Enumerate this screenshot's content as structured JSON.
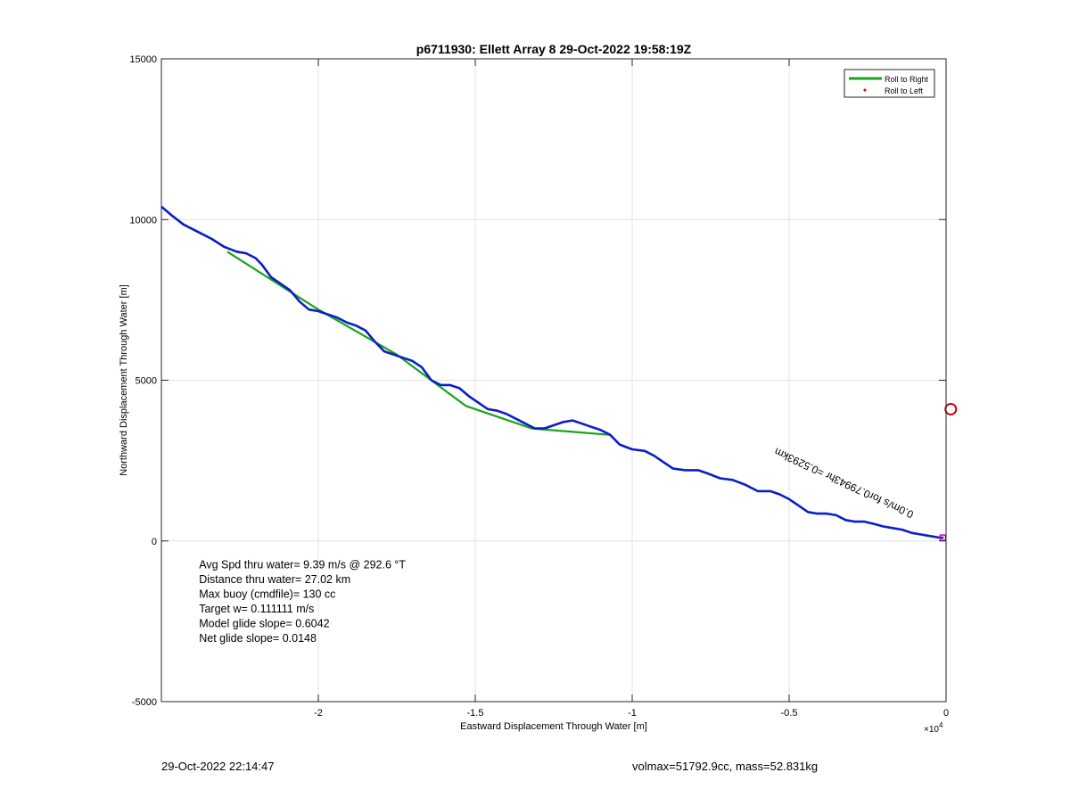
{
  "chart_data": {
    "type": "line",
    "title": "p6711930: Ellett Array 8 29-Oct-2022 19:58:19Z",
    "xlabel": "Eastward Displacement Through Water [m]",
    "ylabel": "Northward Displacement Through Water [m]",
    "x_multiplier_label": "×10",
    "x_multiplier_exp": "4",
    "xlim": [
      -25000,
      0
    ],
    "ylim": [
      -5000,
      15000
    ],
    "xticks": [
      -20000,
      -15000,
      -10000,
      -5000,
      0
    ],
    "xtick_labels": [
      "-2",
      "-1.5",
      "-1",
      "-0.5",
      "0"
    ],
    "yticks": [
      -5000,
      0,
      5000,
      10000,
      15000
    ],
    "ytick_labels": [
      "-5000",
      "0",
      "5000",
      "10000",
      "15000"
    ],
    "grid": true,
    "legend_position": "top-right",
    "legend": [
      {
        "label": "Roll to Right",
        "color": "#1aa31a",
        "marker": "line"
      },
      {
        "label": "Roll to Left",
        "color": "#e00000",
        "marker": "dot"
      }
    ],
    "series": [
      {
        "name": "Roll to Right",
        "color": "#1aa31a",
        "x": [
          -22900,
          -20000,
          -17500,
          -15300,
          -13200,
          -10700
        ],
        "y": [
          9000,
          7200,
          5800,
          4200,
          3500,
          3300
        ]
      },
      {
        "color": "#0a1ec8",
        "x": [
          -25000,
          -24700,
          -24300,
          -23800,
          -23400,
          -23000,
          -22600,
          -22300,
          -22000,
          -21800,
          -21500,
          -21200,
          -20900,
          -20600,
          -20300,
          -20000,
          -19700,
          -19400,
          -19100,
          -18800,
          -18500,
          -18200,
          -17900,
          -17600,
          -17300,
          -17000,
          -16700,
          -16400,
          -16100,
          -15800,
          -15500,
          -15200,
          -14900,
          -14600,
          -14300,
          -14000,
          -13700,
          -13400,
          -13100,
          -12800,
          -12500,
          -12200,
          -11900,
          -11600,
          -11300,
          -11000,
          -10700,
          -10400,
          -10000,
          -9600,
          -9300,
          -9000,
          -8700,
          -8300,
          -7900,
          -7600,
          -7200,
          -6800,
          -6400,
          -6000,
          -5600,
          -5300,
          -5000,
          -4700,
          -4400,
          -4100,
          -3800,
          -3500,
          -3200,
          -2900,
          -2600,
          -2300,
          -2000,
          -1700,
          -1400,
          -1100,
          -800,
          -500,
          -200,
          -80
        ],
        "y": [
          10400,
          10150,
          9850,
          9600,
          9400,
          9150,
          9000,
          8950,
          8800,
          8600,
          8200,
          8000,
          7800,
          7450,
          7200,
          7150,
          7050,
          6950,
          6800,
          6700,
          6550,
          6200,
          5900,
          5800,
          5700,
          5600,
          5400,
          5000,
          4850,
          4850,
          4750,
          4500,
          4300,
          4100,
          4050,
          3950,
          3800,
          3650,
          3500,
          3500,
          3600,
          3700,
          3750,
          3650,
          3550,
          3450,
          3300,
          3000,
          2850,
          2800,
          2650,
          2450,
          2250,
          2200,
          2200,
          2100,
          1950,
          1900,
          1750,
          1550,
          1550,
          1450,
          1300,
          1100,
          900,
          850,
          850,
          800,
          650,
          600,
          600,
          530,
          450,
          400,
          350,
          250,
          200,
          150,
          100,
          100
        ]
      }
    ],
    "markers": [
      {
        "kind": "circle",
        "color": "#cc0000",
        "x": 150,
        "y": 4100
      },
      {
        "kind": "square",
        "color": "#cc00cc",
        "x": -100,
        "y": 100
      }
    ],
    "annotation": {
      "text": "Avg Spd thru water=  9.39 m/s @ 292.6 °T",
      "lines": [
        "Avg Spd thru water=  9.39 m/s @ 292.6 °T",
        "Distance thru water= 27.02 km",
        "Max buoy (cmdfile)= 130 cc",
        "Target w= 0.111111 m/s",
        "Model glide slope= 0.6042",
        "Net glide slope= 0.0148"
      ],
      "x": -23800,
      "y": -850
    },
    "rotated_label": {
      "text": "0.0m/s for0.79943hr =0.5293km",
      "x": -5400,
      "y": 2900,
      "rotation_deg": 25
    }
  },
  "footer": {
    "left": "29-Oct-2022 22:14:47",
    "right": "volmax=51792.9cc, mass=52.831kg"
  }
}
